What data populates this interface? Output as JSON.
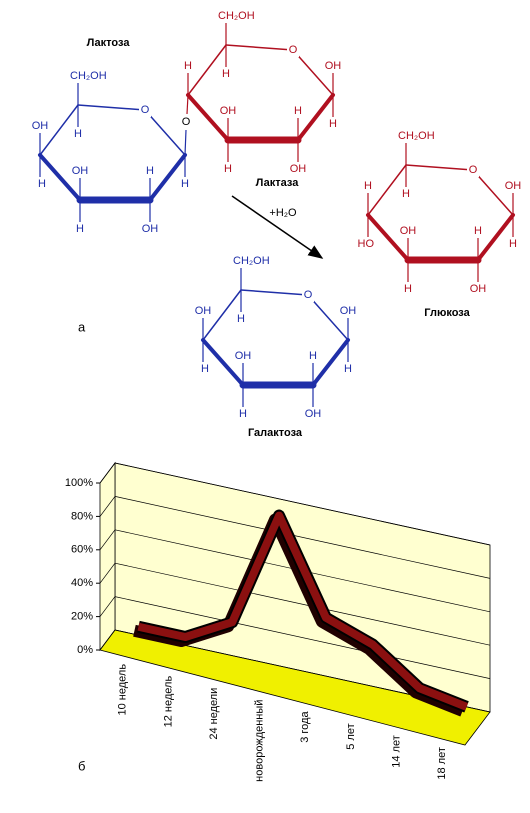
{
  "diagram": {
    "panel_label": "а",
    "lactose": {
      "title": "Лактоза",
      "link": "O",
      "galactose_ring": {
        "ring_o": "O",
        "c5_up": "CH₂OH",
        "c5_down": "H",
        "c4_up": "OH",
        "c4_down": "H",
        "c3_up": "OH",
        "c3_down": "H",
        "c2_up": "H",
        "c2_down": "OH",
        "c1_up": null,
        "c1_down": "H"
      },
      "glucose_ring": {
        "ring_o": "O",
        "c5_up": "CH₂OH",
        "c5_down": "H",
        "c4_up": "H",
        "c4_down": null,
        "c3_up": "OH",
        "c3_down": "H",
        "c2_up": "H",
        "c2_down": "OH",
        "c1_up": "OH",
        "c1_down": "H"
      }
    },
    "enzyme": "Лактаза",
    "reagent": "+H₂O",
    "glucose": {
      "title": "Глюкоза",
      "ring": {
        "ring_o": "O",
        "c5_up": "CH₂OH",
        "c5_down": "H",
        "c4_up": "H",
        "c4_down": "HO",
        "c3_up": "OH",
        "c3_down": "H",
        "c2_up": "H",
        "c2_down": "OH",
        "c1_up": "OH",
        "c1_down": "H"
      }
    },
    "galactose": {
      "title": "Галактоза",
      "ring": {
        "ring_o": "O",
        "c5_up": "CH₂OH",
        "c5_down": "H",
        "c4_up": "OH",
        "c4_down": "H",
        "c3_up": "OH",
        "c3_down": "H",
        "c2_up": "H",
        "c2_down": "OH",
        "c1_up": "OH",
        "c1_down": "H"
      }
    }
  },
  "chart_data": {
    "type": "line3d",
    "panel_label": "б",
    "categories": [
      "10 недель",
      "12 недель",
      "24 недели",
      "новорожденный",
      "3 года",
      "5 лет",
      "14 лет",
      "18 лет"
    ],
    "values": [
      5,
      5,
      20,
      90,
      35,
      25,
      5,
      0
    ],
    "color": "#8b1010",
    "ylim": [
      0,
      100
    ],
    "yticks": [
      {
        "value": 0,
        "label": "0%"
      },
      {
        "value": 20,
        "label": "20%"
      },
      {
        "value": 40,
        "label": "40%"
      },
      {
        "value": 60,
        "label": "60%"
      },
      {
        "value": 80,
        "label": "80%"
      },
      {
        "value": 100,
        "label": "100%"
      }
    ],
    "grid": true
  }
}
